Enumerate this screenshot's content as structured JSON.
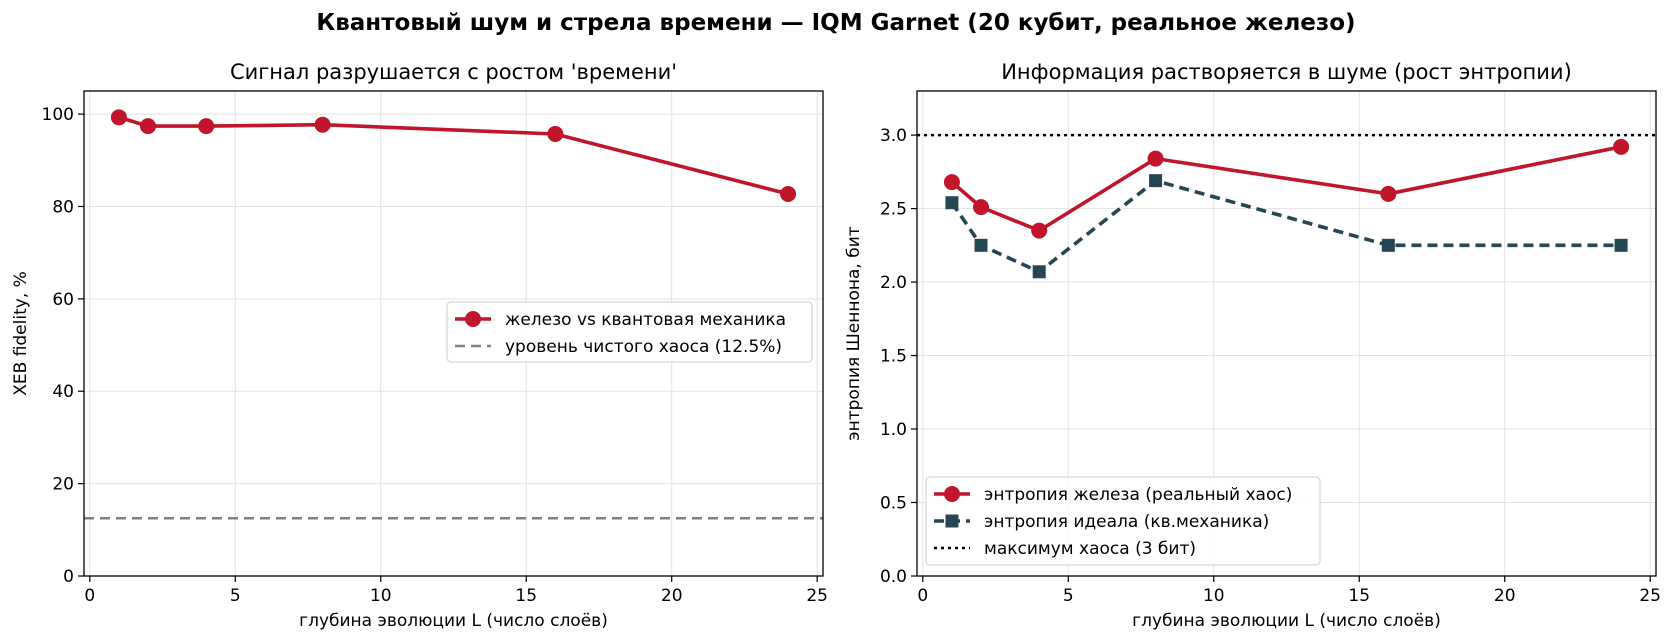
{
  "suptitle": "Квантовый шум и стрела времени — IQM Garnet (20 кубит, реальное железо)",
  "colors": {
    "hardware": "#c0152a",
    "ideal": "#264653",
    "chaos": "#808080",
    "max": "#000000"
  },
  "chart_data": [
    {
      "type": "line",
      "title": "Сигнал разрушается с ростом 'времени'",
      "xlabel": "глубина эволюции L (число слоёв)",
      "ylabel": "XEB fidelity, %",
      "xlim": [
        -0.2,
        25.2
      ],
      "ylim": [
        0,
        105
      ],
      "xticks": [
        0,
        5,
        10,
        15,
        20,
        25
      ],
      "yticks": [
        0,
        20,
        40,
        60,
        80,
        100
      ],
      "grid": true,
      "legend_position": "center-right",
      "series": [
        {
          "name": "железо vs квантовая механика",
          "style": "solid-circle",
          "color": "#c0152a",
          "x": [
            1,
            2,
            4,
            8,
            16,
            24
          ],
          "y": [
            99.3,
            97.4,
            97.4,
            97.7,
            95.7,
            82.7
          ]
        }
      ],
      "hlines": [
        {
          "name": "уровень чистого хаоса (12.5%)",
          "y": 12.5,
          "style": "dashed",
          "color": "#808080"
        }
      ]
    },
    {
      "type": "line",
      "title": "Информация растворяется в шуме (рост энтропии)",
      "xlabel": "глубина эволюции L (число слоёв)",
      "ylabel": "энтропия Шеннона, бит",
      "xlim": [
        -0.2,
        25.2
      ],
      "ylim": [
        0,
        3.3
      ],
      "xticks": [
        0,
        5,
        10,
        15,
        20,
        25
      ],
      "yticks": [
        0.0,
        0.5,
        1.0,
        1.5,
        2.0,
        2.5,
        3.0
      ],
      "grid": true,
      "legend_position": "bottom-left",
      "series": [
        {
          "name": "энтропия железа (реальный хаос)",
          "style": "solid-circle",
          "color": "#c0152a",
          "x": [
            1,
            2,
            4,
            8,
            16,
            24
          ],
          "y": [
            2.68,
            2.51,
            2.35,
            2.84,
            2.6,
            2.92
          ]
        },
        {
          "name": "энтропия идеала (кв.механика)",
          "style": "dashed-square",
          "color": "#264653",
          "x": [
            1,
            2,
            4,
            8,
            16,
            24
          ],
          "y": [
            2.54,
            2.25,
            2.07,
            2.69,
            2.25,
            2.25
          ]
        }
      ],
      "hlines": [
        {
          "name": "максимум хаоса (3 бит)",
          "y": 3.0,
          "style": "dotted",
          "color": "#000000"
        }
      ]
    }
  ]
}
